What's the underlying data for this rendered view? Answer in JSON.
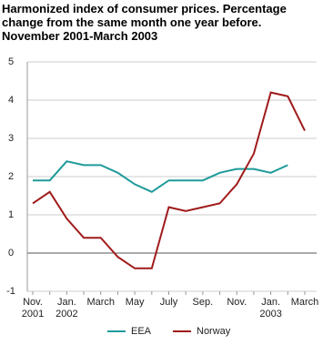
{
  "chart_data": {
    "type": "line",
    "title": "Harmonized index of consumer prices. Percentage change from the same month one year before. November 2001-March 2003",
    "categories": [
      "Nov.\n2001",
      null,
      "Jan.\n2002",
      null,
      "March",
      null,
      "May",
      null,
      "July",
      null,
      "Sep.",
      null,
      "Nov.",
      null,
      "Jan.\n2003",
      null,
      "March"
    ],
    "series": [
      {
        "name": "EEA",
        "color": "#1f9a9a",
        "values": [
          1.9,
          1.9,
          2.4,
          2.3,
          2.3,
          2.1,
          1.8,
          1.6,
          1.9,
          1.9,
          1.9,
          2.1,
          2.2,
          2.2,
          2.1,
          2.3,
          null
        ]
      },
      {
        "name": "Norway",
        "color": "#a01b1b",
        "values": [
          1.3,
          1.6,
          0.9,
          0.4,
          0.4,
          -0.1,
          -0.4,
          -0.4,
          1.2,
          1.1,
          1.2,
          1.3,
          1.8,
          2.6,
          4.2,
          4.1,
          3.2
        ]
      }
    ],
    "ylim": [
      -1,
      5
    ],
    "yticks": [
      -1,
      0,
      1,
      2,
      3,
      4,
      5
    ],
    "grid": true
  }
}
